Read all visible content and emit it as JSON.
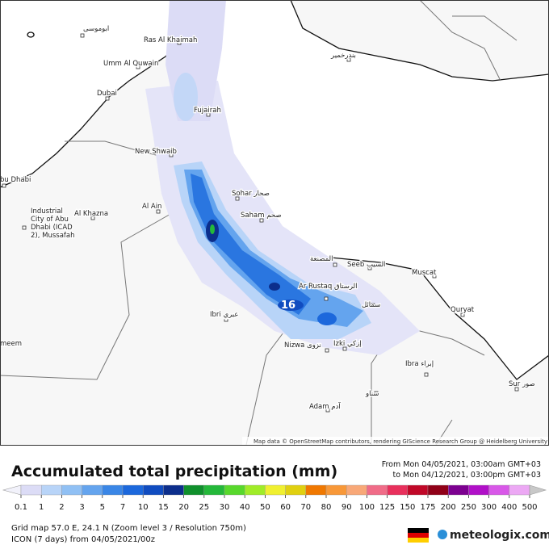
{
  "map": {
    "places": [
      "ابوموسى",
      "Ras Al Khaimah",
      "Umm Al Quwain",
      "Dubai",
      "Fujairah",
      "New Shwaib",
      "bu Dhabi",
      "Industrial",
      "City of Abu",
      "Dhabi (ICAD",
      "2), Mussafah",
      "Al Khazna",
      "Al Ain",
      "Sohar صحار",
      "Saham صحم",
      "المصنعة",
      "Seeb السيب",
      "Muscat",
      "Ar Rustaq الرستاق",
      "Quryat",
      "سمائل",
      "Ibri عبري",
      "Nizwa نزوى",
      "Izki إزكي",
      "Ibra إبراء",
      "سناو",
      "Sur صور",
      "Adam آدم",
      "meem",
      "بندرخمير"
    ],
    "peak_label": "16",
    "attribution": "Map data © OpenStreetMap contributors, rendering GIScience Research Group @ Heidelberg University"
  },
  "legend": {
    "title": "Accumulated total precipitation (mm)",
    "period_from": "From Mon 04/05/2021, 03:00am GMT+03",
    "period_to": "to Mon 04/12/2021, 03:00pm GMT+03",
    "ticks": [
      0.1,
      1,
      2,
      3,
      5,
      7,
      10,
      15,
      20,
      25,
      30,
      40,
      50,
      60,
      70,
      80,
      90,
      100,
      125,
      150,
      175,
      200,
      250,
      300,
      400,
      500
    ],
    "colors": [
      "#f2f2fb",
      "#dcdcf6",
      "#b8d4f8",
      "#90c0f4",
      "#64a4ee",
      "#3a86e6",
      "#1c68dc",
      "#104cc0",
      "#0c2e8c",
      "#10902c",
      "#24b83a",
      "#58d82c",
      "#a0ec28",
      "#f0f030",
      "#e0d010",
      "#f07800",
      "#f89838",
      "#f8a878",
      "#f06c88",
      "#e8305c",
      "#c00828",
      "#900018",
      "#7c0090",
      "#b010c8",
      "#d858e8",
      "#eca8f4",
      "#f6d8fa",
      "#c8c8c8"
    ]
  },
  "footer": {
    "grid": "Grid map 57.0 E, 24.1 N (Zoom level 3 / Resolution 750m)",
    "model": "ICON (7 days) from 04/05/2021/00z",
    "brand": "meteologix.com"
  }
}
